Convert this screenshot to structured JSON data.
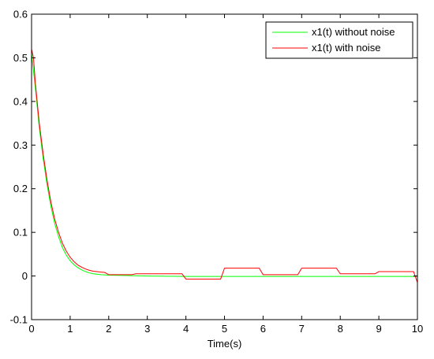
{
  "chart_data": {
    "type": "line",
    "title": "",
    "xlabel": "Time(s)",
    "ylabel": "",
    "xlim": [
      0,
      10
    ],
    "ylim": [
      -0.1,
      0.6
    ],
    "x_ticks": [
      0,
      1,
      2,
      3,
      4,
      5,
      6,
      7,
      8,
      9,
      10
    ],
    "y_ticks": [
      -0.1,
      0,
      0.1,
      0.2,
      0.3,
      0.4,
      0.5,
      0.6
    ],
    "grid": false,
    "legend_position": "top-right",
    "series": [
      {
        "name": "x1(t) without noise",
        "color": "#00ff00",
        "points": [
          [
            0,
            0.51
          ],
          [
            0.1,
            0.43
          ],
          [
            0.2,
            0.34
          ],
          [
            0.3,
            0.27
          ],
          [
            0.4,
            0.21
          ],
          [
            0.5,
            0.16
          ],
          [
            0.6,
            0.12
          ],
          [
            0.7,
            0.09
          ],
          [
            0.8,
            0.065
          ],
          [
            0.9,
            0.048
          ],
          [
            1.0,
            0.035
          ],
          [
            1.1,
            0.026
          ],
          [
            1.2,
            0.019
          ],
          [
            1.3,
            0.014
          ],
          [
            1.4,
            0.01
          ],
          [
            1.5,
            0.007
          ],
          [
            1.6,
            0.005
          ],
          [
            1.8,
            0.003
          ],
          [
            2.0,
            0.002
          ],
          [
            2.5,
            0.001
          ],
          [
            3,
            0
          ],
          [
            4,
            -0.001
          ],
          [
            5,
            -0.001
          ],
          [
            6,
            -0.001
          ],
          [
            7,
            -0.001
          ],
          [
            8,
            -0.001
          ],
          [
            9,
            -0.001
          ],
          [
            10,
            -0.001
          ]
        ]
      },
      {
        "name": "x1(t) with noise",
        "color": "#ff0000",
        "points": [
          [
            0,
            0.52
          ],
          [
            0.05,
            0.5
          ],
          [
            0.1,
            0.44
          ],
          [
            0.2,
            0.35
          ],
          [
            0.3,
            0.28
          ],
          [
            0.4,
            0.22
          ],
          [
            0.5,
            0.17
          ],
          [
            0.6,
            0.13
          ],
          [
            0.7,
            0.1
          ],
          [
            0.8,
            0.075
          ],
          [
            0.9,
            0.057
          ],
          [
            1.0,
            0.043
          ],
          [
            1.1,
            0.033
          ],
          [
            1.2,
            0.025
          ],
          [
            1.3,
            0.02
          ],
          [
            1.4,
            0.016
          ],
          [
            1.5,
            0.013
          ],
          [
            1.6,
            0.011
          ],
          [
            1.7,
            0.01
          ],
          [
            1.8,
            0.009
          ],
          [
            1.9,
            0.008
          ],
          [
            2.0,
            0.003
          ],
          [
            2.6,
            0.003
          ],
          [
            2.7,
            0.005
          ],
          [
            3.9,
            0.005
          ],
          [
            4.0,
            -0.007
          ],
          [
            4.9,
            -0.007
          ],
          [
            5.0,
            0.018
          ],
          [
            5.9,
            0.018
          ],
          [
            6.0,
            0.003
          ],
          [
            6.9,
            0.003
          ],
          [
            7.0,
            0.018
          ],
          [
            7.9,
            0.018
          ],
          [
            8.0,
            0.005
          ],
          [
            8.9,
            0.005
          ],
          [
            9.0,
            0.01
          ],
          [
            9.9,
            0.01
          ],
          [
            10.0,
            -0.015
          ]
        ]
      }
    ]
  }
}
